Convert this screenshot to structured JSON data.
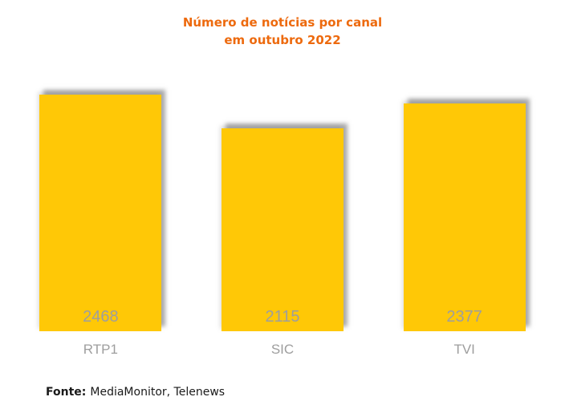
{
  "chart_data": {
    "type": "bar",
    "title": "Número de notícias por canal em outubro 2022",
    "title_lines": [
      "Número de notícias por canal",
      "em outubro 2022"
    ],
    "categories": [
      "RTP1",
      "SIC",
      "TVI"
    ],
    "values": [
      2468,
      2115,
      2377
    ],
    "xlabel": "",
    "ylabel": "",
    "ylim": [
      0,
      2468
    ],
    "grid": false,
    "legend": false,
    "axes_visible": false,
    "value_labels_position": "inside-bottom"
  },
  "footer": {
    "label": "Fonte:",
    "text": "MediaMonitor, Telenews"
  },
  "colors": {
    "title-orange": "#ED6A0E",
    "bar-yellow": "#FFC806",
    "label-gray": "#9E9E9E",
    "text-black": "#1A1A1A"
  }
}
